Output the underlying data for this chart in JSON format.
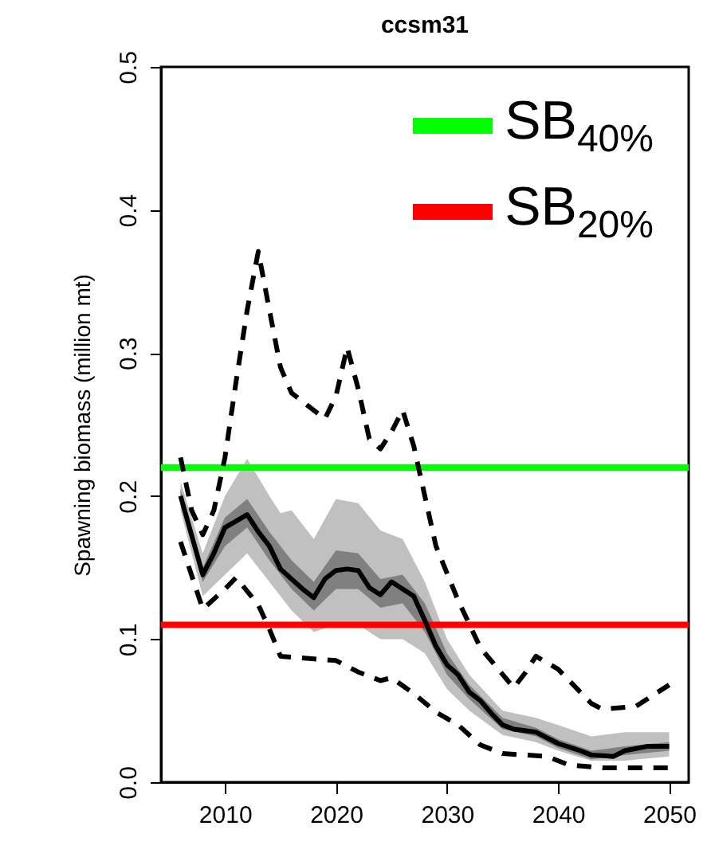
{
  "chart_data": {
    "type": "line",
    "title": "ccsm31",
    "ylabel": "Spawning biomass (million mt)",
    "xlim": [
      2004.24,
      2051.76
    ],
    "xticks": [
      2010,
      2020,
      2030,
      2040,
      2050
    ],
    "ylim": [
      0,
      0.5
    ],
    "yticks": [
      {
        "value": 0,
        "label": "0.0"
      },
      0.1,
      0.2,
      0.3,
      0.4,
      0.5
    ],
    "grid": false,
    "legend": "top right",
    "ref_lines": [
      {
        "axis": "y",
        "value": 0.22,
        "label": "SB$_{40%}$",
        "color": "#00ff00"
      },
      {
        "axis": "y",
        "value": 0.11,
        "label": "SB$_{20%}$",
        "color": "#ff0000"
      }
    ],
    "series": [
      {
        "type": "area",
        "color": "#c0c0c0",
        "x": [
          2006,
          2008,
          2010,
          2012,
          2014,
          2015,
          2016,
          2018,
          2020,
          2022,
          2024,
          2026,
          2028,
          2030,
          2032,
          2035,
          2038,
          2040,
          2043,
          2046,
          2050
        ],
        "values": [
          null,
          null,
          null,
          null,
          null,
          null,
          null,
          null,
          null,
          null,
          null,
          null,
          null,
          null,
          null,
          null,
          null,
          null,
          null,
          null,
          null
        ],
        "lower": [
          0.19,
          0.13,
          0.145,
          0.16,
          0.14,
          0.13,
          0.12,
          0.105,
          0.11,
          0.11,
          0.1,
          0.1,
          0.09,
          0.065,
          0.05,
          0.033,
          0.028,
          0.022,
          0.015,
          0.015,
          0.018
        ],
        "upper": [
          0.21,
          0.16,
          0.2,
          0.226,
          0.2,
          0.188,
          0.19,
          0.17,
          0.198,
          0.195,
          0.176,
          0.17,
          0.14,
          0.1,
          0.075,
          0.05,
          0.045,
          0.04,
          0.032,
          0.035,
          0.035
        ]
      },
      {
        "type": "area",
        "color": "#808080",
        "x": [
          2006,
          2008,
          2010,
          2012,
          2014,
          2016,
          2018,
          2020,
          2022,
          2024,
          2026,
          2028,
          2030,
          2032,
          2035,
          2038,
          2040,
          2043,
          2046,
          2050
        ],
        "values": [
          null,
          null,
          null,
          null,
          null,
          null,
          null,
          null,
          null,
          null,
          null,
          null,
          null,
          null,
          null,
          null,
          null,
          null,
          null,
          null
        ],
        "lower": [
          0.195,
          0.14,
          0.165,
          0.178,
          0.155,
          0.135,
          0.12,
          0.135,
          0.135,
          0.122,
          0.125,
          0.105,
          0.075,
          0.058,
          0.037,
          0.032,
          0.024,
          0.016,
          0.019,
          0.022
        ],
        "upper": [
          0.205,
          0.15,
          0.185,
          0.198,
          0.175,
          0.155,
          0.14,
          0.162,
          0.16,
          0.142,
          0.145,
          0.125,
          0.09,
          0.068,
          0.045,
          0.038,
          0.03,
          0.022,
          0.025,
          0.028
        ]
      },
      {
        "color": "#000000",
        "line_style": "solid",
        "x": [
          2006,
          2008,
          2009,
          2010,
          2012,
          2013,
          2014,
          2015,
          2016,
          2017,
          2018,
          2019,
          2020,
          2021,
          2022,
          2023,
          2024,
          2025,
          2026,
          2027,
          2028,
          2029,
          2030,
          2031,
          2032,
          2033,
          2034,
          2035,
          2036,
          2037,
          2038,
          2040,
          2042,
          2043,
          2045,
          2046,
          2048,
          2050
        ],
        "values": [
          0.2,
          0.145,
          0.16,
          0.178,
          0.187,
          0.175,
          0.165,
          0.149,
          0.142,
          0.135,
          0.129,
          0.142,
          0.148,
          0.149,
          0.148,
          0.136,
          0.131,
          0.14,
          0.135,
          0.13,
          0.113,
          0.095,
          0.082,
          0.075,
          0.063,
          0.057,
          0.048,
          0.04,
          0.037,
          0.036,
          0.035,
          0.027,
          0.022,
          0.019,
          0.018,
          0.022,
          0.025,
          0.025
        ]
      },
      {
        "color": "#000000",
        "line_style": "dashed",
        "x": [
          2006,
          2007,
          2008,
          2009,
          2010,
          2011,
          2012,
          2013,
          2014,
          2015,
          2016,
          2018,
          2019,
          2020,
          2021,
          2022,
          2023,
          2024,
          2025,
          2026,
          2027,
          2028,
          2029,
          2031,
          2033,
          2036,
          2037,
          2038,
          2040,
          2043,
          2044,
          2047,
          2050
        ],
        "values": [
          0.227,
          0.19,
          0.173,
          0.19,
          0.227,
          0.28,
          0.33,
          0.371,
          0.33,
          0.29,
          0.272,
          0.26,
          0.254,
          0.27,
          0.304,
          0.275,
          0.24,
          0.233,
          0.245,
          0.26,
          0.235,
          0.2,
          0.165,
          0.127,
          0.094,
          0.066,
          0.076,
          0.088,
          0.079,
          0.055,
          0.051,
          0.053,
          0.068
        ]
      },
      {
        "color": "#000000",
        "line_style": "dashed",
        "x": [
          2006,
          2008,
          2010,
          2011,
          2013,
          2014,
          2015,
          2020,
          2022,
          2024,
          2025,
          2027,
          2029,
          2031,
          2033,
          2035,
          2039,
          2041,
          2044,
          2047,
          2050
        ],
        "values": [
          0.168,
          0.121,
          0.135,
          0.143,
          0.124,
          0.107,
          0.088,
          0.085,
          0.077,
          0.071,
          0.073,
          0.062,
          0.049,
          0.04,
          0.026,
          0.02,
          0.018,
          0.012,
          0.01,
          0.01,
          0.01
        ]
      }
    ]
  }
}
